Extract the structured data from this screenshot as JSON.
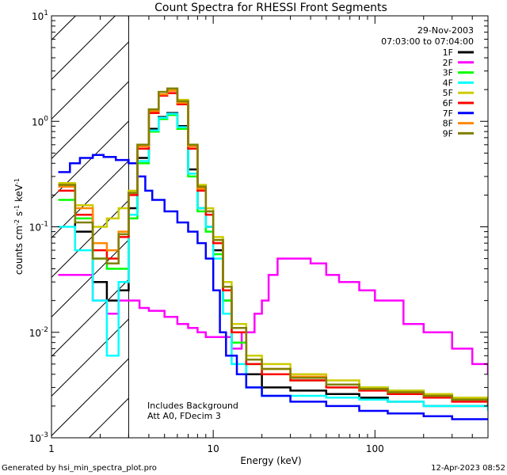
{
  "chart_data": {
    "type": "line",
    "title": "Count Spectra for RHESSI Front Segments",
    "xlabel": "Energy (keV)",
    "ylabel": "counts cm⁻² s⁻¹ keV⁻¹",
    "xscale": "log",
    "yscale": "log",
    "xlim": [
      1,
      500
    ],
    "ylim": [
      0.001,
      10
    ],
    "x_ticks": [
      {
        "value": 1,
        "label": "1"
      },
      {
        "value": 10,
        "label": "10"
      },
      {
        "value": 100,
        "label": "100"
      }
    ],
    "y_ticks": [
      {
        "value": 10,
        "label": "10¹",
        "base": "10",
        "exp": "1"
      },
      {
        "value": 1,
        "label": "10⁰",
        "base": "10",
        "exp": "0"
      },
      {
        "value": 0.1,
        "label": "10⁻¹",
        "base": "10",
        "exp": "-1"
      },
      {
        "value": 0.01,
        "label": "10⁻²",
        "base": "10",
        "exp": "-2"
      },
      {
        "value": 0.001,
        "label": "10⁻³",
        "base": "10",
        "exp": "-3"
      }
    ],
    "hatched_region_max_kev": 3,
    "date": "29-Nov-2003",
    "time_range": "07:03:00 to 07:04:00",
    "annotations": [
      "Includes Background",
      "Att A0, FDecim 3"
    ],
    "footer_left": "Generated by hsi_min_spectra_plot.pro",
    "footer_right": "12-Apr-2023 08:52",
    "legend_position": "top-right",
    "series": [
      {
        "name": "1F",
        "color": "#000000",
        "scale": 1.0,
        "x": [
          1.1,
          1.4,
          1.8,
          2.2,
          2.6,
          3.0,
          3.4,
          4.0,
          4.6,
          5.2,
          6.0,
          7.0,
          8.0,
          9.0,
          10.0,
          11.5,
          13.0,
          16,
          20,
          30,
          50,
          80,
          120,
          200,
          300,
          500
        ],
        "y": [
          0.25,
          0.09,
          0.03,
          0.02,
          0.025,
          0.15,
          0.45,
          0.85,
          1.1,
          1.2,
          0.9,
          0.35,
          0.15,
          0.1,
          0.06,
          0.02,
          0.008,
          0.004,
          0.003,
          0.0028,
          0.0026,
          0.0024,
          0.0022,
          0.002,
          0.002,
          0.002
        ]
      },
      {
        "name": "2F",
        "color": "#ff00ff",
        "scale": 1.0,
        "x": [
          1.1,
          1.4,
          1.8,
          2.2,
          2.6,
          3.0,
          3.5,
          4.0,
          5.0,
          6.0,
          7.0,
          8.0,
          9.0,
          10.0,
          11,
          13,
          15,
          18,
          20,
          22,
          25,
          30,
          40,
          50,
          60,
          80,
          100,
          150,
          200,
          300,
          400,
          500
        ],
        "y": [
          0.035,
          0.035,
          0.02,
          0.015,
          0.02,
          0.02,
          0.017,
          0.016,
          0.014,
          0.012,
          0.011,
          0.01,
          0.009,
          0.009,
          0.009,
          0.007,
          0.01,
          0.015,
          0.02,
          0.035,
          0.05,
          0.05,
          0.045,
          0.035,
          0.03,
          0.025,
          0.02,
          0.012,
          0.01,
          0.007,
          0.005,
          0.004
        ]
      },
      {
        "name": "3F",
        "color": "#00ff00",
        "scale": 1.0,
        "x": [
          1.1,
          1.4,
          1.8,
          2.2,
          2.6,
          3.0,
          3.4,
          4.0,
          4.6,
          5.2,
          6.0,
          7.0,
          8.0,
          9.0,
          10.0,
          11.5,
          13.0,
          16,
          20,
          30,
          50,
          80,
          120,
          200,
          300,
          500
        ],
        "y": [
          0.18,
          0.12,
          0.05,
          0.04,
          0.04,
          0.12,
          0.4,
          0.8,
          1.05,
          1.15,
          0.85,
          0.3,
          0.14,
          0.09,
          0.055,
          0.02,
          0.008,
          0.005,
          0.004,
          0.0035,
          0.003,
          0.003,
          0.0028,
          0.0026,
          0.0024,
          0.0022
        ]
      },
      {
        "name": "4F",
        "color": "#00ffff",
        "scale": 1.0,
        "x": [
          1.1,
          1.4,
          1.8,
          2.2,
          2.6,
          3.0,
          3.4,
          4.0,
          4.6,
          5.2,
          6.0,
          7.0,
          8.0,
          9.0,
          10.0,
          11.5,
          13.0,
          16,
          20,
          30,
          50,
          80,
          120,
          200,
          300,
          500
        ],
        "y": [
          0.1,
          0.06,
          0.02,
          0.006,
          0.03,
          0.13,
          0.42,
          0.82,
          1.08,
          1.18,
          0.88,
          0.32,
          0.15,
          0.1,
          0.05,
          0.015,
          0.005,
          0.003,
          0.0025,
          0.0025,
          0.0024,
          0.0023,
          0.0022,
          0.002,
          0.002,
          0.0018
        ]
      },
      {
        "name": "5F",
        "color": "#cccc00",
        "scale": 1.0,
        "x": [
          1.1,
          1.4,
          1.8,
          2.2,
          2.6,
          3.0,
          3.4,
          4.0,
          4.6,
          5.2,
          6.0,
          7.0,
          8.0,
          9.0,
          10.0,
          11.5,
          13.0,
          16,
          20,
          30,
          50,
          80,
          120,
          200,
          300,
          500
        ],
        "y": [
          0.26,
          0.16,
          0.1,
          0.12,
          0.15,
          0.22,
          0.6,
          1.3,
          1.9,
          2.0,
          1.6,
          0.6,
          0.25,
          0.15,
          0.08,
          0.03,
          0.012,
          0.006,
          0.005,
          0.004,
          0.0035,
          0.003,
          0.0028,
          0.0026,
          0.0024,
          0.0022
        ]
      },
      {
        "name": "6F",
        "color": "#ff0000",
        "scale": 1.0,
        "x": [
          1.1,
          1.4,
          1.8,
          2.2,
          2.6,
          3.0,
          3.4,
          4.0,
          4.6,
          5.2,
          6.0,
          7.0,
          8.0,
          9.0,
          10.0,
          11.5,
          13.0,
          16,
          20,
          30,
          50,
          80,
          120,
          200,
          300,
          500
        ],
        "y": [
          0.22,
          0.13,
          0.06,
          0.05,
          0.08,
          0.2,
          0.55,
          1.2,
          1.75,
          1.85,
          1.45,
          0.55,
          0.22,
          0.13,
          0.07,
          0.025,
          0.01,
          0.005,
          0.004,
          0.0035,
          0.003,
          0.0028,
          0.0026,
          0.0024,
          0.0022,
          0.002
        ]
      },
      {
        "name": "7F",
        "color": "#0000ff",
        "scale": 1.0,
        "x": [
          1.1,
          1.3,
          1.5,
          1.8,
          2.1,
          2.5,
          3.0,
          3.4,
          3.8,
          4.2,
          5.0,
          6.0,
          7.0,
          8.0,
          9.0,
          10.0,
          11.0,
          12.0,
          14.0,
          16,
          20,
          30,
          50,
          80,
          120,
          200,
          300,
          500
        ],
        "y": [
          0.33,
          0.4,
          0.45,
          0.48,
          0.46,
          0.43,
          0.4,
          0.3,
          0.22,
          0.18,
          0.14,
          0.11,
          0.09,
          0.07,
          0.05,
          0.025,
          0.01,
          0.006,
          0.004,
          0.003,
          0.0025,
          0.0022,
          0.002,
          0.0018,
          0.0017,
          0.0016,
          0.0015,
          0.0015
        ]
      },
      {
        "name": "8F",
        "color": "#ff8800",
        "scale": 1.0,
        "x": [
          1.1,
          1.4,
          1.8,
          2.2,
          2.6,
          3.0,
          3.4,
          4.0,
          4.6,
          5.2,
          6.0,
          7.0,
          8.0,
          9.0,
          10.0,
          11.5,
          13.0,
          16,
          20,
          30,
          50,
          80,
          120,
          200,
          300,
          500
        ],
        "y": [
          0.24,
          0.15,
          0.07,
          0.06,
          0.09,
          0.21,
          0.58,
          1.25,
          1.8,
          1.95,
          1.5,
          0.58,
          0.23,
          0.14,
          0.075,
          0.027,
          0.011,
          0.0055,
          0.0045,
          0.0038,
          0.0032,
          0.0029,
          0.0027,
          0.0025,
          0.0023,
          0.0021
        ]
      },
      {
        "name": "9F",
        "color": "#808000",
        "scale": 1.0,
        "x": [
          1.1,
          1.4,
          1.8,
          2.2,
          2.6,
          3.0,
          3.4,
          4.0,
          4.6,
          5.2,
          6.0,
          7.0,
          8.0,
          9.0,
          10.0,
          11.5,
          13.0,
          16,
          20,
          30,
          50,
          80,
          120,
          200,
          300,
          500
        ],
        "y": [
          0.25,
          0.11,
          0.05,
          0.045,
          0.085,
          0.21,
          0.6,
          1.3,
          1.9,
          2.05,
          1.55,
          0.6,
          0.24,
          0.14,
          0.075,
          0.027,
          0.011,
          0.0055,
          0.0045,
          0.0037,
          0.0032,
          0.0029,
          0.0027,
          0.0025,
          0.0023,
          0.0021
        ]
      }
    ]
  }
}
